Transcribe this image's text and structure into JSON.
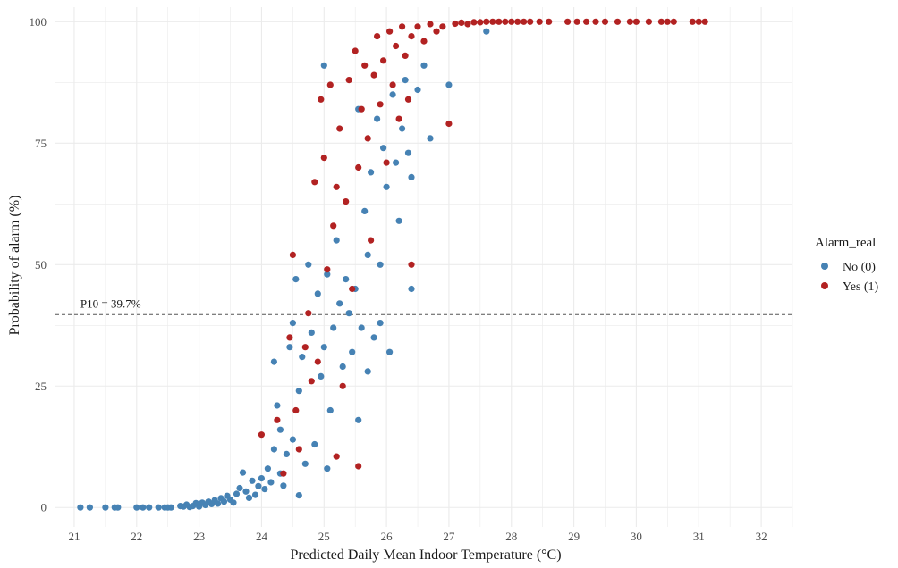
{
  "chart_data": {
    "type": "scatter",
    "xlabel": "Predicted Daily Mean Indoor Temperature (°C)",
    "ylabel": "Probability of alarm (%)",
    "xlim": [
      20.7,
      32.5
    ],
    "ylim": [
      -4,
      103
    ],
    "x_ticks": [
      "21",
      "22",
      "23",
      "24",
      "25",
      "26",
      "27",
      "28",
      "29",
      "30",
      "31",
      "32"
    ],
    "y_ticks": [
      "0",
      "25",
      "50",
      "75",
      "100"
    ],
    "grid": true,
    "legend": {
      "title": "Alarm_real",
      "placement": "right",
      "entries": [
        "No (0)",
        "Yes (1)"
      ]
    },
    "hline": {
      "y": 39.7,
      "style": "dashed",
      "label": "P10 = 39.7%"
    },
    "colors": {
      "no": "#4682B4",
      "yes": "#B22222",
      "grid": "#ebebeb",
      "hline": "#555555"
    },
    "series": [
      {
        "name": "No (0)",
        "color": "#4682B4",
        "points": [
          [
            21.1,
            0
          ],
          [
            21.25,
            0
          ],
          [
            21.5,
            0
          ],
          [
            21.65,
            0
          ],
          [
            21.7,
            0
          ],
          [
            22.0,
            0
          ],
          [
            22.1,
            0
          ],
          [
            22.2,
            0
          ],
          [
            22.35,
            0
          ],
          [
            22.45,
            0
          ],
          [
            22.5,
            0
          ],
          [
            22.55,
            0
          ],
          [
            22.7,
            0.3
          ],
          [
            22.75,
            0.2
          ],
          [
            22.8,
            0.6
          ],
          [
            22.85,
            0.1
          ],
          [
            22.9,
            0.3
          ],
          [
            22.95,
            0.9
          ],
          [
            23.0,
            0.2
          ],
          [
            23.05,
            1.0
          ],
          [
            23.1,
            0.5
          ],
          [
            23.15,
            1.2
          ],
          [
            23.2,
            0.7
          ],
          [
            23.25,
            1.5
          ],
          [
            23.3,
            0.8
          ],
          [
            23.35,
            1.9
          ],
          [
            23.4,
            1.2
          ],
          [
            23.45,
            2.4
          ],
          [
            23.5,
            1.6
          ],
          [
            23.55,
            1.0
          ],
          [
            23.6,
            2.8
          ],
          [
            23.65,
            4.0
          ],
          [
            23.7,
            7.2
          ],
          [
            23.75,
            3.3
          ],
          [
            23.8,
            2.0
          ],
          [
            23.85,
            5.5
          ],
          [
            23.9,
            2.6
          ],
          [
            23.95,
            4.4
          ],
          [
            24.0,
            6.0
          ],
          [
            24.05,
            3.8
          ],
          [
            24.1,
            8.0
          ],
          [
            24.15,
            5.2
          ],
          [
            24.2,
            30.0
          ],
          [
            24.2,
            12.0
          ],
          [
            24.25,
            21.0
          ],
          [
            24.3,
            7.0
          ],
          [
            24.3,
            16.0
          ],
          [
            24.35,
            4.5
          ],
          [
            24.4,
            11.0
          ],
          [
            24.45,
            33.0
          ],
          [
            24.5,
            14.0
          ],
          [
            24.5,
            38.0
          ],
          [
            24.55,
            47.0
          ],
          [
            24.6,
            2.5
          ],
          [
            24.6,
            24.0
          ],
          [
            24.65,
            31.0
          ],
          [
            24.7,
            9.0
          ],
          [
            24.75,
            50.0
          ],
          [
            24.8,
            36.0
          ],
          [
            24.85,
            13.0
          ],
          [
            24.9,
            44.0
          ],
          [
            24.95,
            27.0
          ],
          [
            25.0,
            33.0
          ],
          [
            25.05,
            48.0
          ],
          [
            25.1,
            20.0
          ],
          [
            25.15,
            37.0
          ],
          [
            25.2,
            55.0
          ],
          [
            25.25,
            42.0
          ],
          [
            25.3,
            29.0
          ],
          [
            25.35,
            47.0
          ],
          [
            25.4,
            40.0
          ],
          [
            25.45,
            32.0
          ],
          [
            25.5,
            45.0
          ],
          [
            25.55,
            18.0
          ],
          [
            25.55,
            82.0
          ],
          [
            25.6,
            37.0
          ],
          [
            25.65,
            61.0
          ],
          [
            25.7,
            52.0
          ],
          [
            25.75,
            69.0
          ],
          [
            25.8,
            35.0
          ],
          [
            25.85,
            80.0
          ],
          [
            25.9,
            50.0
          ],
          [
            25.9,
            38.0
          ],
          [
            25.95,
            74.0
          ],
          [
            26.0,
            66.0
          ],
          [
            26.05,
            32.0
          ],
          [
            26.1,
            85.0
          ],
          [
            26.15,
            71.0
          ],
          [
            26.2,
            59.0
          ],
          [
            26.25,
            78.0
          ],
          [
            26.3,
            88.0
          ],
          [
            26.35,
            73.0
          ],
          [
            26.4,
            45.0
          ],
          [
            26.4,
            68.0
          ],
          [
            26.5,
            86.0
          ],
          [
            26.6,
            91.0
          ],
          [
            26.7,
            76.0
          ],
          [
            27.0,
            87.0
          ],
          [
            27.6,
            98.0
          ],
          [
            25.0,
            91.0
          ],
          [
            25.05,
            8.0
          ],
          [
            25.7,
            28.0
          ]
        ]
      },
      {
        "name": "Yes (1)",
        "color": "#B22222",
        "points": [
          [
            24.0,
            15.0
          ],
          [
            24.25,
            18.0
          ],
          [
            24.35,
            7.0
          ],
          [
            24.45,
            35.0
          ],
          [
            24.5,
            52.0
          ],
          [
            24.55,
            20.0
          ],
          [
            24.6,
            12.0
          ],
          [
            24.7,
            33.0
          ],
          [
            24.75,
            40.0
          ],
          [
            24.8,
            26.0
          ],
          [
            24.85,
            67.0
          ],
          [
            24.9,
            30.0
          ],
          [
            24.95,
            84.0
          ],
          [
            25.0,
            72.0
          ],
          [
            25.05,
            49.0
          ],
          [
            25.1,
            87.0
          ],
          [
            25.15,
            58.0
          ],
          [
            25.2,
            10.5
          ],
          [
            25.2,
            66.0
          ],
          [
            25.25,
            78.0
          ],
          [
            25.3,
            25.0
          ],
          [
            25.35,
            63.0
          ],
          [
            25.4,
            88.0
          ],
          [
            25.45,
            45.0
          ],
          [
            25.5,
            94.0
          ],
          [
            25.55,
            8.5
          ],
          [
            25.55,
            70.0
          ],
          [
            25.6,
            82.0
          ],
          [
            25.65,
            91.0
          ],
          [
            25.7,
            76.0
          ],
          [
            25.75,
            55.0
          ],
          [
            25.8,
            89.0
          ],
          [
            25.85,
            97.0
          ],
          [
            25.9,
            83.0
          ],
          [
            25.95,
            92.0
          ],
          [
            26.0,
            71.0
          ],
          [
            26.05,
            98.0
          ],
          [
            26.1,
            87.0
          ],
          [
            26.15,
            95.0
          ],
          [
            26.2,
            80.0
          ],
          [
            26.25,
            99.0
          ],
          [
            26.3,
            93.0
          ],
          [
            26.35,
            84.0
          ],
          [
            26.4,
            50.0
          ],
          [
            26.4,
            97.0
          ],
          [
            26.5,
            99.0
          ],
          [
            26.6,
            96.0
          ],
          [
            26.7,
            99.5
          ],
          [
            26.8,
            98.0
          ],
          [
            26.9,
            99.0
          ],
          [
            27.0,
            79.0
          ],
          [
            27.1,
            99.6
          ],
          [
            27.2,
            99.8
          ],
          [
            27.3,
            99.5
          ],
          [
            27.4,
            99.9
          ],
          [
            27.5,
            99.9
          ],
          [
            27.6,
            100
          ],
          [
            27.7,
            100
          ],
          [
            27.8,
            100
          ],
          [
            27.9,
            100
          ],
          [
            28.0,
            100
          ],
          [
            28.1,
            100
          ],
          [
            28.2,
            100
          ],
          [
            28.3,
            100
          ],
          [
            28.45,
            100
          ],
          [
            28.6,
            100
          ],
          [
            28.9,
            100
          ],
          [
            29.05,
            100
          ],
          [
            29.2,
            100
          ],
          [
            29.35,
            100
          ],
          [
            29.5,
            100
          ],
          [
            29.7,
            100
          ],
          [
            29.9,
            100
          ],
          [
            30.0,
            100
          ],
          [
            30.2,
            100
          ],
          [
            30.4,
            100
          ],
          [
            30.5,
            100
          ],
          [
            30.6,
            100
          ],
          [
            30.9,
            100
          ],
          [
            31.0,
            100
          ],
          [
            31.1,
            100
          ]
        ]
      }
    ]
  }
}
